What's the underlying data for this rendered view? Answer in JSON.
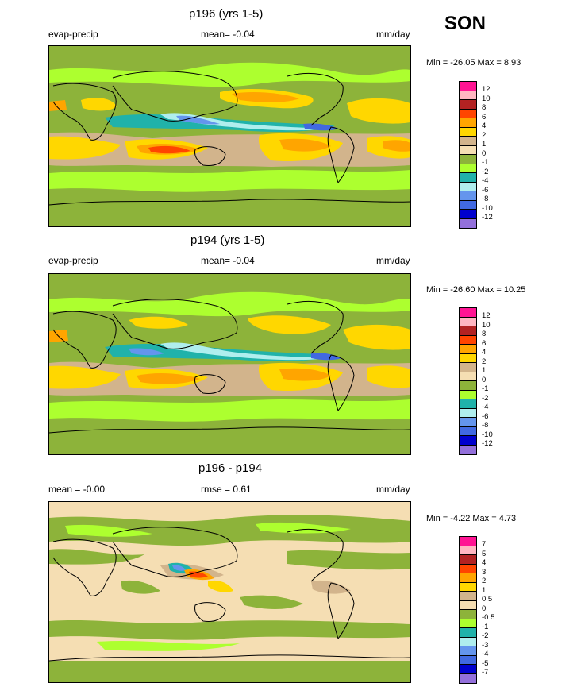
{
  "season": "SON",
  "panels": [
    {
      "title": "p196 (yrs 1-5)",
      "left_label": "evap-precip",
      "mean_label": "mean=  -0.04",
      "units": "mm/day",
      "minmax": "Min = -26.05 Max =   8.93",
      "colorbar_labels": [
        "12",
        "10",
        "8",
        "6",
        "4",
        "2",
        "1",
        "0",
        "-1",
        "-2",
        "-4",
        "-6",
        "-8",
        "-10",
        "-12"
      ]
    },
    {
      "title": "p194 (yrs 1-5)",
      "left_label": "evap-precip",
      "mean_label": "mean=  -0.04",
      "units": "mm/day",
      "minmax": "Min = -26.60 Max =  10.25",
      "colorbar_labels": [
        "12",
        "10",
        "8",
        "6",
        "4",
        "2",
        "1",
        "0",
        "-1",
        "-2",
        "-4",
        "-6",
        "-8",
        "-10",
        "-12"
      ]
    },
    {
      "title": "p196 - p194",
      "left_label": "mean =  -0.00",
      "mean_label": "rmse =   0.61",
      "units": "mm/day",
      "minmax": "Min =  -4.22 Max =   4.73",
      "colorbar_labels": [
        "7",
        "5",
        "4",
        "3",
        "2",
        "1",
        "0.5",
        "0",
        "-0.5",
        "-1",
        "-2",
        "-3",
        "-4",
        "-5",
        "-7"
      ]
    }
  ],
  "colors": {
    "scale": [
      "#ff1493",
      "#ffb6c1",
      "#b22222",
      "#ff4500",
      "#ffa500",
      "#ffd700",
      "#d2b48c",
      "#f5deb3",
      "#8db33a",
      "#adff2f",
      "#20b2aa",
      "#afeeee",
      "#6495ed",
      "#4169e1",
      "#0000cd",
      "#9370db"
    ],
    "land_outline": "#000000"
  }
}
